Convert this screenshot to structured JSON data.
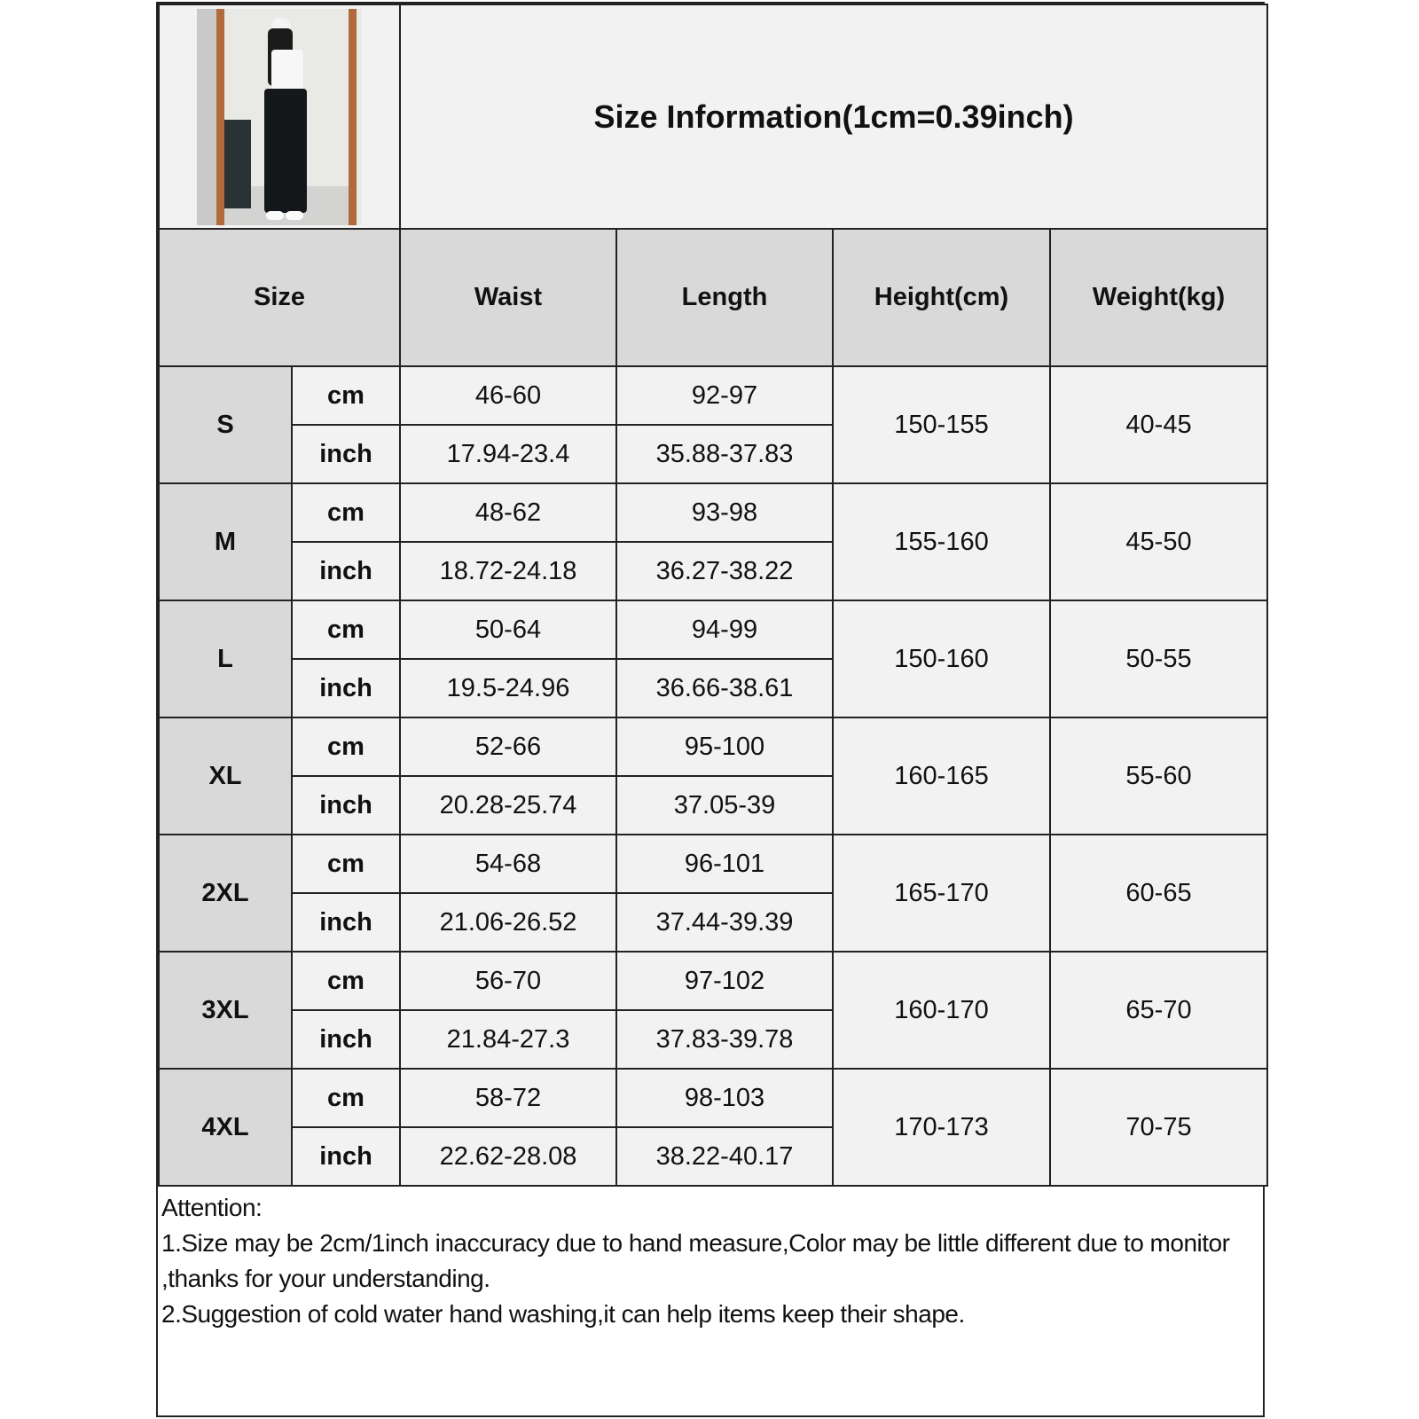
{
  "title": "Size Information(1cm=0.39inch)",
  "headers": {
    "size": "Size",
    "waist": "Waist",
    "length": "Length",
    "height": "Height(cm)",
    "weight": "Weight(kg)"
  },
  "units": {
    "cm": "cm",
    "inch": "inch"
  },
  "rows": [
    {
      "size": "S",
      "waist_cm": "46-60",
      "waist_inch": "17.94-23.4",
      "length_cm": "92-97",
      "length_inch": "35.88-37.83",
      "height": "150-155",
      "weight": "40-45"
    },
    {
      "size": "M",
      "waist_cm": "48-62",
      "waist_inch": "18.72-24.18",
      "length_cm": "93-98",
      "length_inch": "36.27-38.22",
      "height": "155-160",
      "weight": "45-50"
    },
    {
      "size": "L",
      "waist_cm": "50-64",
      "waist_inch": "19.5-24.96",
      "length_cm": "94-99",
      "length_inch": "36.66-38.61",
      "height": "150-160",
      "weight": "50-55"
    },
    {
      "size": "XL",
      "waist_cm": "52-66",
      "waist_inch": "20.28-25.74",
      "length_cm": "95-100",
      "length_inch": "37.05-39",
      "height": "160-165",
      "weight": "55-60"
    },
    {
      "size": "2XL",
      "waist_cm": "54-68",
      "waist_inch": "21.06-26.52",
      "length_cm": "96-101",
      "length_inch": "37.44-39.39",
      "height": "165-170",
      "weight": "60-65"
    },
    {
      "size": "3XL",
      "waist_cm": "56-70",
      "waist_inch": "21.84-27.3",
      "length_cm": "97-102",
      "length_inch": "37.83-39.78",
      "height": "160-170",
      "weight": "65-70"
    },
    {
      "size": "4XL",
      "waist_cm": "58-72",
      "waist_inch": "22.62-28.08",
      "length_cm": "98-103",
      "length_inch": "38.22-40.17",
      "height": "170-173",
      "weight": "70-75"
    }
  ],
  "notes": {
    "heading": "Attention:",
    "line1": "1.Size may be 2cm/1inch inaccuracy due to hand measure,Color may be little different due to monitor ,thanks for your understanding.",
    "line2": "2.Suggestion of cold water hand washing,it can help items keep their shape."
  }
}
